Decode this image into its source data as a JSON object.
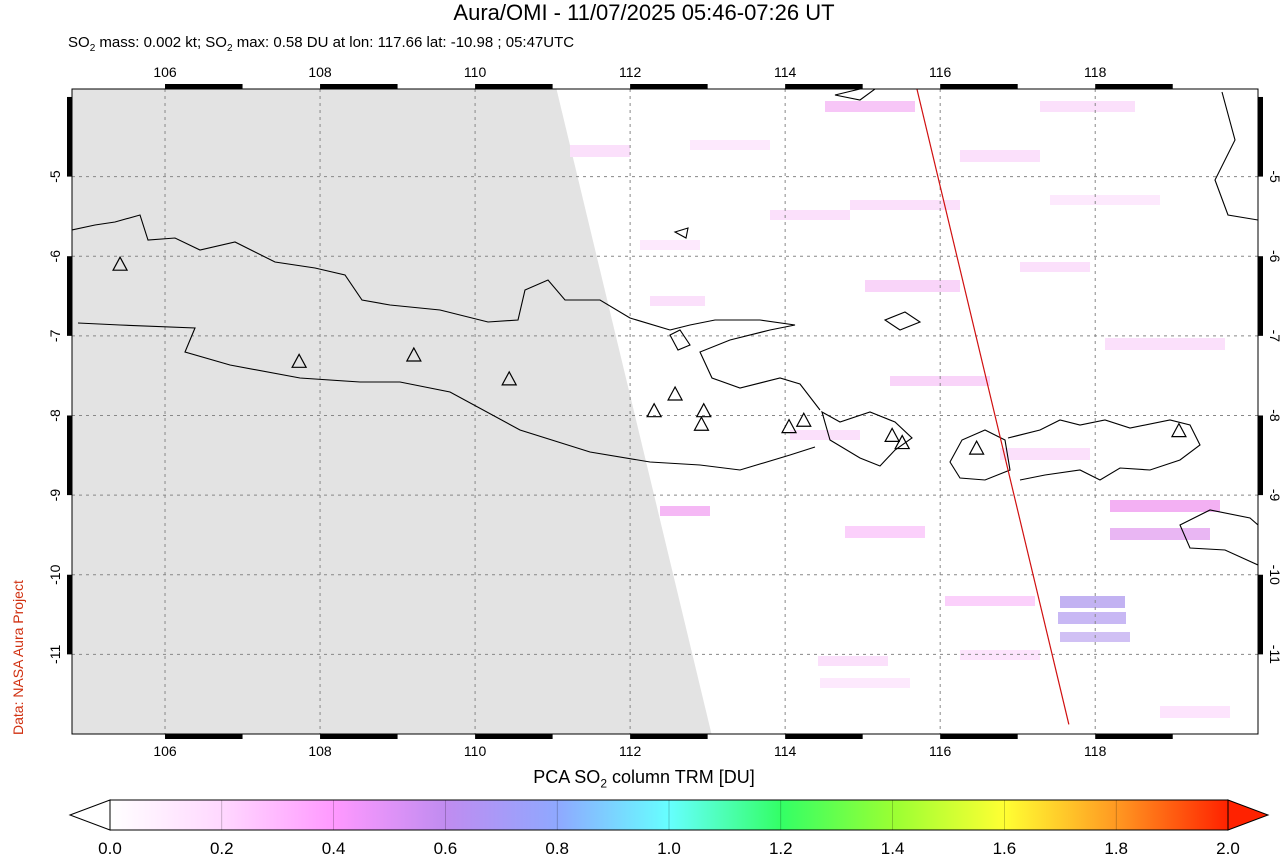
{
  "header": {
    "title": "Aura/OMI - 11/07/2025 05:46-07:26 UT",
    "subtitle_prefix": "SO",
    "subtitle_sub1": "2",
    "subtitle_mid": " mass: 0.002 kt; SO",
    "subtitle_sub2": "2",
    "subtitle_suffix": " max: 0.58 DU at lon: 117.66 lat: -10.98 ; 05:47UTC"
  },
  "credit": "Data: NASA Aura Project",
  "map": {
    "lon_range": [
      104.8,
      120.1
    ],
    "lat_range": [
      -12.0,
      -3.9
    ],
    "lon_ticks": [
      "106",
      "108",
      "110",
      "112",
      "114",
      "116",
      "118"
    ],
    "lat_ticks": [
      "-5",
      "-6",
      "-7",
      "-8",
      "-9",
      "-10",
      "-11"
    ],
    "no_data_color": "#e3e3e3",
    "coast_color": "#000000",
    "track_color": "#d01010"
  },
  "volcanoes": [
    {
      "lon": 105.42,
      "lat": -6.1
    },
    {
      "lon": 107.73,
      "lat": -7.32
    },
    {
      "lon": 109.21,
      "lat": -7.24
    },
    {
      "lon": 110.44,
      "lat": -7.54
    },
    {
      "lon": 112.31,
      "lat": -7.94
    },
    {
      "lon": 112.58,
      "lat": -7.73
    },
    {
      "lon": 112.92,
      "lat": -8.11
    },
    {
      "lon": 112.95,
      "lat": -7.94
    },
    {
      "lon": 114.05,
      "lat": -8.14
    },
    {
      "lon": 114.24,
      "lat": -8.06
    },
    {
      "lon": 115.38,
      "lat": -8.25
    },
    {
      "lon": 115.51,
      "lat": -8.34
    },
    {
      "lon": 116.47,
      "lat": -8.41
    },
    {
      "lon": 119.08,
      "lat": -8.19
    }
  ],
  "colorbar": {
    "title_prefix": "PCA SO",
    "title_sub": "2",
    "title_suffix": " column TRM [DU]",
    "ticks": [
      "0.0",
      "0.2",
      "0.4",
      "0.6",
      "0.8",
      "1.0",
      "1.2",
      "1.4",
      "1.6",
      "1.8",
      "2.0"
    ],
    "colors": [
      "#ffffff",
      "#ffd8ff",
      "#ff99ff",
      "#c08cf0",
      "#8fa8ff",
      "#66ffff",
      "#33ff66",
      "#99ff33",
      "#ffff33",
      "#ff9922",
      "#ff2200"
    ]
  }
}
